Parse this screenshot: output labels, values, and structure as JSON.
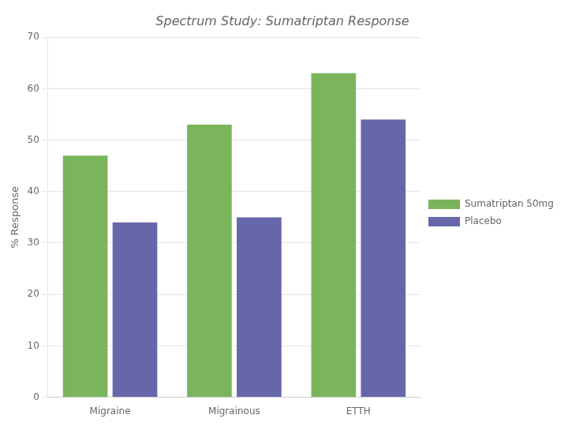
{
  "chart_data": {
    "type": "bar",
    "title": "Spectrum Study: Sumatriptan Response",
    "ylabel": "% Response",
    "categories": [
      "Migraine",
      "Migrainous",
      "ETTH"
    ],
    "series": [
      {
        "name": "Sumatriptan 50mg",
        "color": "#7ab55c",
        "values": [
          47,
          53,
          63
        ]
      },
      {
        "name": "Placebo",
        "color": "#6666aa",
        "values": [
          34,
          35,
          54
        ]
      }
    ],
    "ylim": [
      0,
      70
    ],
    "yticks": [
      0,
      10,
      20,
      30,
      40,
      50,
      60,
      70
    ],
    "grid": true,
    "legend": "right"
  }
}
